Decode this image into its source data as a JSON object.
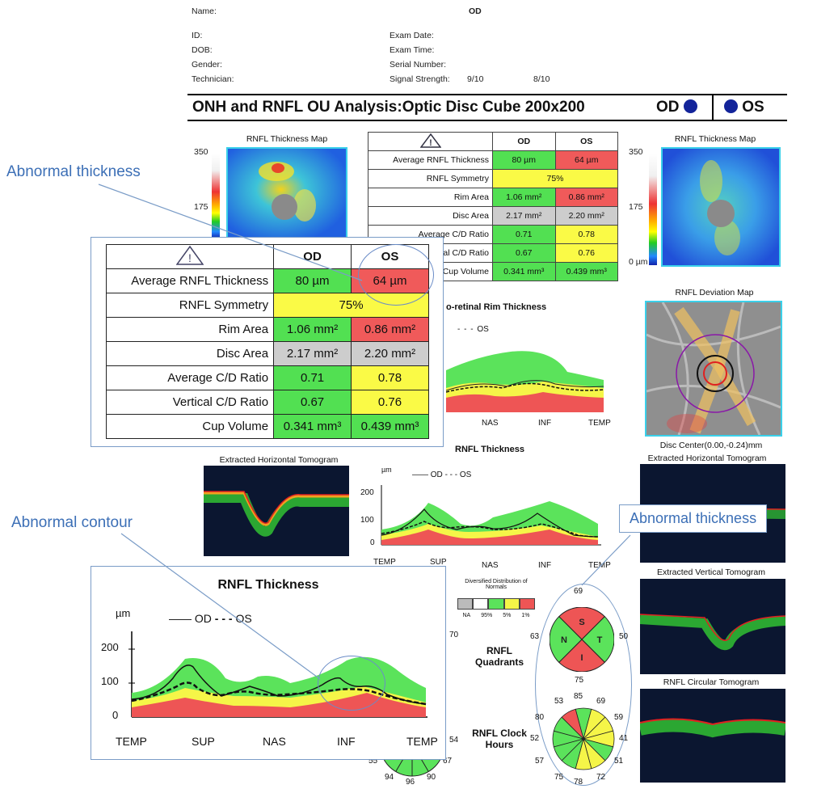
{
  "header": {
    "name_label": "Name:",
    "eye_label": "OD",
    "id_label": "ID:",
    "dob_label": "DOB:",
    "gender_label": "Gender:",
    "technician_label": "Technician:",
    "exam_date_label": "Exam Date:",
    "exam_time_label": "Exam Time:",
    "serial_label": "Serial Number:",
    "signal_label": "Signal Strength:",
    "signal_od": "9/10",
    "signal_os": "8/10"
  },
  "title": "ONH and RNFL OU Analysis:Optic Disc Cube 200x200",
  "eye_od": "OD",
  "eye_os": "OS",
  "maps": {
    "left_title": "RNFL Thickness Map",
    "right_title": "RNFL Thickness Map",
    "scale_max": "350",
    "scale_mid": "175",
    "scale_min": "0 µm",
    "deviation_title": "RNFL Deviation Map",
    "disc_center": "Disc Center(0.00,-0.24)mm"
  },
  "table": {
    "col_od": "OD",
    "col_os": "OS",
    "rows": [
      {
        "label": "Average RNFL Thickness",
        "od": "80 µm",
        "os": "64 µm"
      },
      {
        "label": "RNFL Symmetry",
        "both": "75%"
      },
      {
        "label": "Rim Area",
        "od": "1.06 mm²",
        "os": "0.86 mm²"
      },
      {
        "label": "Disc Area",
        "od": "2.17 mm²",
        "os": "2.20 mm²"
      },
      {
        "label": "Average C/D Ratio",
        "od": "0.71",
        "os": "0.78"
      },
      {
        "label": "Vertical C/D Ratio",
        "od": "0.67",
        "os": "0.76"
      },
      {
        "label": "Cup Volume",
        "od": "0.341 mm³",
        "os": "0.439 mm³"
      }
    ],
    "colors": {
      "normal": "#52e052",
      "borderline": "#fafa46",
      "abnormal": "#f05a5a",
      "na": "#cdcdcd"
    }
  },
  "sections": {
    "rim_title": "o-retinal Rim Thickness",
    "rnfl_title": "RNFL Thickness",
    "legend_od": "OD",
    "legend_os": "OS",
    "unit": "µm",
    "axis_labels": [
      "TEMP",
      "SUP",
      "NAS",
      "INF",
      "TEMP"
    ],
    "rim_axis_labels": [
      "NAS",
      "INF",
      "TEMP"
    ],
    "ticks": [
      "200",
      "100",
      "0"
    ],
    "tomo_h_left": "Extracted Horizontal Tomogram",
    "tomo_h_right": "Extracted Horizontal Tomogram",
    "tomo_v_right": "Extracted Vertical Tomogram",
    "tomo_circ": "RNFL Circular Tomogram",
    "normals_title": "Diversified Distribution of Normals",
    "normals_labels": [
      "NA",
      "95%",
      "5%",
      "1%"
    ],
    "quadrants_label": "RNFL Quadrants",
    "clock_label": "RNFL Clock Hours"
  },
  "quadrants": {
    "S": "69",
    "N": "63",
    "T": "50",
    "I": "75",
    "left_partial": "70"
  },
  "clock": {
    "top": [
      "53",
      "85",
      "69"
    ],
    "left": [
      "80",
      "52",
      "57"
    ],
    "right": [
      "59",
      "41",
      "51"
    ],
    "bottom": [
      "75",
      "78",
      "72"
    ],
    "left_partial": [
      "54"
    ],
    "right_partial": [
      "67"
    ],
    "lower_left": [
      "55",
      "94",
      "96",
      "90"
    ]
  },
  "zoom": {
    "title": "RNFL Thickness",
    "unit": "µm",
    "legend_od": "OD",
    "legend_os": "OS",
    "ticks": [
      "200",
      "100",
      "0"
    ],
    "axis_labels": [
      "TEMP",
      "SUP",
      "NAS",
      "INF",
      "TEMP"
    ]
  },
  "callouts": {
    "thickness1": "Abnormal thickness",
    "contour": "Abnormal contour",
    "thickness2": "Abnormal thickness"
  }
}
